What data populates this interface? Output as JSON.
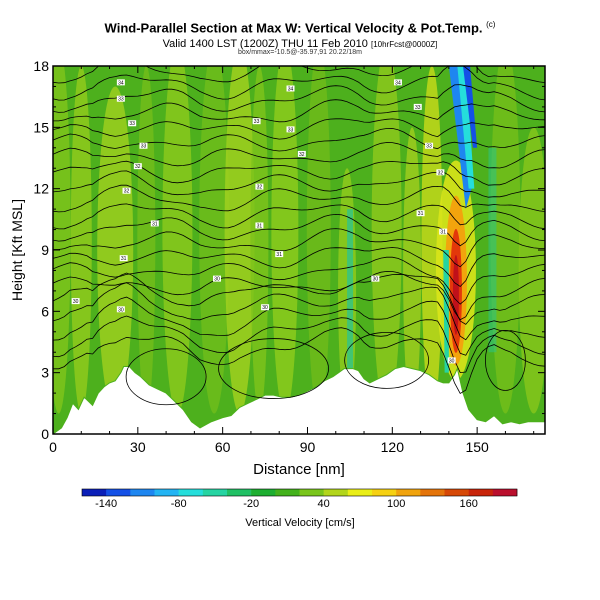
{
  "header": {
    "title": "Wind-Parallel Section at Max W: Vertical Velocity & Pot.Temp.",
    "title_mark": "(c)",
    "subtitle": "Valid 1400 LST (1200Z) THU 11 Feb 2010",
    "subtitle_tag": "[10hrFcst@0000Z]",
    "info_line": "box/mmax=-10.5@-35.97,91 20.22/18m"
  },
  "chart_data": {
    "type": "cross-section",
    "title": "Wind-Parallel Section at Max W: Vertical Velocity & Pot.Temp.",
    "xlabel": "Distance [nm]",
    "ylabel": "Height [Kft MSL]",
    "xlim": [
      0,
      174
    ],
    "ylim": [
      0,
      18
    ],
    "xticks": [
      0,
      30,
      60,
      90,
      120,
      150
    ],
    "yticks": [
      0,
      3,
      6,
      9,
      12,
      15,
      18
    ],
    "terrain": [
      [
        0,
        0
      ],
      [
        3,
        0.3
      ],
      [
        5,
        0.8
      ],
      [
        7,
        1.5
      ],
      [
        9,
        1.2
      ],
      [
        11,
        1.8
      ],
      [
        14,
        1.4
      ],
      [
        16,
        2
      ],
      [
        18,
        2.3
      ],
      [
        20,
        2.5
      ],
      [
        22,
        2.6
      ],
      [
        24,
        3
      ],
      [
        25,
        3.3
      ],
      [
        27,
        3.3
      ],
      [
        29,
        3
      ],
      [
        31,
        2.8
      ],
      [
        34,
        2.4
      ],
      [
        37,
        2.2
      ],
      [
        40,
        2
      ],
      [
        43,
        1.6
      ],
      [
        46,
        1.2
      ],
      [
        49,
        0.6
      ],
      [
        52,
        0.3
      ],
      [
        56,
        0.6
      ],
      [
        60,
        0.8
      ],
      [
        63,
        0.9
      ],
      [
        66,
        1.3
      ],
      [
        69,
        1.5
      ],
      [
        72,
        1.7
      ],
      [
        75,
        1.9
      ],
      [
        78,
        1.9
      ],
      [
        81,
        1.8
      ],
      [
        84,
        1.8
      ],
      [
        87,
        1.9
      ],
      [
        90,
        2.1
      ],
      [
        93,
        2.3
      ],
      [
        96,
        2.6
      ],
      [
        99,
        2.8
      ],
      [
        101,
        3
      ],
      [
        103,
        3.2
      ],
      [
        106,
        3.2
      ],
      [
        108,
        3.1
      ],
      [
        110,
        2.7
      ],
      [
        112,
        2.5
      ],
      [
        115,
        2.7
      ],
      [
        118,
        2.9
      ],
      [
        121,
        3.2
      ],
      [
        124,
        3.3
      ],
      [
        127,
        3.2
      ],
      [
        130,
        3.1
      ],
      [
        133,
        2.9
      ],
      [
        136,
        2.6
      ],
      [
        138,
        2.5
      ],
      [
        140,
        2.5
      ],
      [
        142,
        2.9
      ],
      [
        143,
        3.2
      ],
      [
        145,
        2
      ],
      [
        147,
        1.2
      ],
      [
        150,
        0.7
      ],
      [
        153,
        0.6
      ],
      [
        156,
        0.9
      ],
      [
        159,
        0.5
      ],
      [
        162,
        0.6
      ],
      [
        165,
        0.5
      ],
      [
        168,
        0.6
      ],
      [
        171,
        0.6
      ],
      [
        174,
        0.6
      ]
    ],
    "plume": {
      "x_center": 143,
      "updraft_max_cm_s": 180,
      "updraft_heights_kft": [
        4,
        10
      ],
      "downdraft_heights_kft": [
        11,
        18
      ]
    },
    "theta_labels": [
      {
        "x": 24,
        "y": 17.2,
        "text": "34"
      },
      {
        "x": 24,
        "y": 16.4,
        "text": "33"
      },
      {
        "x": 28,
        "y": 15.2,
        "text": "33"
      },
      {
        "x": 32,
        "y": 14.1,
        "text": "33"
      },
      {
        "x": 30,
        "y": 13.1,
        "text": "32"
      },
      {
        "x": 26,
        "y": 11.9,
        "text": "32"
      },
      {
        "x": 36,
        "y": 10.3,
        "text": "31"
      },
      {
        "x": 25,
        "y": 8.6,
        "text": "31"
      },
      {
        "x": 8,
        "y": 6.5,
        "text": "30"
      },
      {
        "x": 24,
        "y": 6.1,
        "text": "30"
      },
      {
        "x": 84,
        "y": 16.9,
        "text": "34"
      },
      {
        "x": 72,
        "y": 15.3,
        "text": "33"
      },
      {
        "x": 84,
        "y": 14.9,
        "text": "33"
      },
      {
        "x": 88,
        "y": 13.7,
        "text": "32"
      },
      {
        "x": 73,
        "y": 12.1,
        "text": "32"
      },
      {
        "x": 73,
        "y": 10.2,
        "text": "31"
      },
      {
        "x": 80,
        "y": 8.8,
        "text": "31"
      },
      {
        "x": 58,
        "y": 7.6,
        "text": "30"
      },
      {
        "x": 75,
        "y": 6.2,
        "text": "30"
      },
      {
        "x": 114,
        "y": 7.6,
        "text": "30"
      },
      {
        "x": 122,
        "y": 17.2,
        "text": "34"
      },
      {
        "x": 129,
        "y": 16,
        "text": "33"
      },
      {
        "x": 133,
        "y": 14.1,
        "text": "33"
      },
      {
        "x": 137,
        "y": 12.8,
        "text": "32"
      },
      {
        "x": 130,
        "y": 10.8,
        "text": "31"
      },
      {
        "x": 138,
        "y": 9.9,
        "text": "31"
      },
      {
        "x": 141,
        "y": 3.6,
        "text": "30"
      }
    ],
    "colorbar": {
      "label": "Vertical Velocity [cm/s]",
      "colors": [
        "#0b1fb8",
        "#1450e6",
        "#1e86f0",
        "#23b4f3",
        "#25dedb",
        "#26d4a2",
        "#20c064",
        "#1dae30",
        "#43b11b",
        "#79c51b",
        "#b2d51b",
        "#eaee17",
        "#f6d112",
        "#f0a30d",
        "#e4740a",
        "#d64806",
        "#c8240a",
        "#ba0f2d"
      ],
      "tick_labels": [
        "-140",
        "-80",
        "-20",
        "40",
        "100",
        "160"
      ]
    }
  }
}
